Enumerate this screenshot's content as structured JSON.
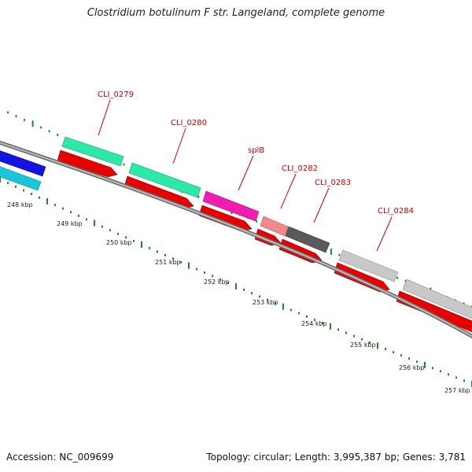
{
  "title": "Clostridium botulinum F str. Langeland, complete genome",
  "footer": {
    "accession": "Accession: NC_009699",
    "summary": "Topology: circular; Length: 3,995,387 bp; Genes: 3,781"
  },
  "colors": {
    "backbone": "#7a7a7a",
    "tick": "#1a8a1a",
    "gene_label": "#cc0000",
    "cds_red": "#e80000"
  },
  "ruler": {
    "unit": "kbp",
    "labels": [
      "248 kbp",
      "249 kbp",
      "250 kbp",
      "251 kbp",
      "252 kbp",
      "253 kbp",
      "254 kbp",
      "255 kbp",
      "256 kbp",
      "257 kbp"
    ]
  },
  "gene_labels": [
    "CLI_0279",
    "CLI_0280",
    "splB",
    "CLI_0282",
    "CLI_0283",
    "CLI_0284"
  ],
  "feature_colors": {
    "left_blue": "#1414e0",
    "left_cyan": "#18c8d8",
    "CLI_0279": "#2ee8a8",
    "CLI_0280": "#2ee8a8",
    "splB": "#f01eb0",
    "CLI_0282": "#f08a8a",
    "CLI_0283": "#5a5a5a",
    "CLI_0284": "#c8c8c8",
    "right_gray": "#c8c8c8"
  }
}
